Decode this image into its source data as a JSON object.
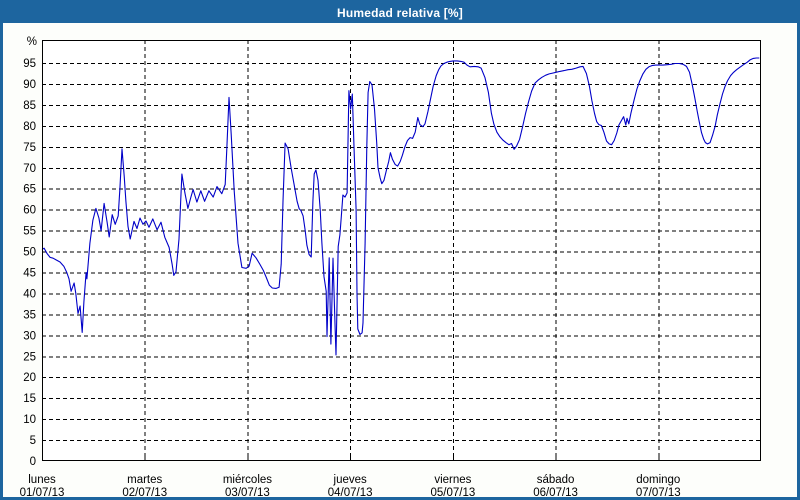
{
  "window": {
    "title": "Humedad relativa [%]"
  },
  "colors": {
    "titlebar": "#1d659f",
    "frame": "#1d659f",
    "figure_bg": "#fdfefb",
    "plot_bg": "#ffffff",
    "grid": "#000000",
    "axis": "#000000",
    "series": "#0000c8",
    "text": "#000000"
  },
  "chart_data": {
    "type": "line",
    "title": "Humedad relativa [%]",
    "ylabel": "%",
    "xlabel": "",
    "grid": true,
    "legend": "none",
    "ylim": [
      0,
      100.5
    ],
    "xlim": [
      0,
      168
    ],
    "x_unit": "hours since lunes 01/07/13 00:00",
    "yticks": [
      0,
      5,
      10,
      15,
      20,
      25,
      30,
      35,
      40,
      45,
      50,
      55,
      60,
      65,
      70,
      75,
      80,
      85,
      90,
      95
    ],
    "xticks": [
      {
        "label": "lunes",
        "date": "01/07/13",
        "hour": 0
      },
      {
        "label": "martes",
        "date": "02/07/13",
        "hour": 24
      },
      {
        "label": "miércoles",
        "date": "03/07/13",
        "hour": 48
      },
      {
        "label": "jueves",
        "date": "04/07/13",
        "hour": 72
      },
      {
        "label": "viernes",
        "date": "05/07/13",
        "hour": 96
      },
      {
        "label": "sábado",
        "date": "06/07/13",
        "hour": 120
      },
      {
        "label": "domingo",
        "date": "07/07/13",
        "hour": 144
      }
    ],
    "series": [
      {
        "name": "Humedad relativa",
        "color": "#0000c8",
        "points": [
          [
            0,
            50.5
          ],
          [
            0.5,
            50.8
          ],
          [
            1.2,
            49.5
          ],
          [
            1.9,
            48.6
          ],
          [
            2.6,
            48.4
          ],
          [
            3.3,
            48
          ],
          [
            4.2,
            47.5
          ],
          [
            5.1,
            46.5
          ],
          [
            5.8,
            45
          ],
          [
            6.3,
            43.5
          ],
          [
            6.8,
            40.5
          ],
          [
            7.5,
            42.5
          ],
          [
            7.9,
            40
          ],
          [
            8.4,
            35.2
          ],
          [
            8.9,
            37
          ],
          [
            9.4,
            30.7
          ],
          [
            9.8,
            38
          ],
          [
            10.3,
            45
          ],
          [
            10.5,
            43.5
          ],
          [
            11.2,
            52
          ],
          [
            11.9,
            57.5
          ],
          [
            12.6,
            60.3
          ],
          [
            13.3,
            58
          ],
          [
            13.8,
            55
          ],
          [
            14.5,
            61.5
          ],
          [
            15.2,
            57
          ],
          [
            15.7,
            53.5
          ],
          [
            16.4,
            58.8
          ],
          [
            17.1,
            56.5
          ],
          [
            17.8,
            58.5
          ],
          [
            18.2,
            65
          ],
          [
            18.7,
            74.5
          ],
          [
            19.2,
            68
          ],
          [
            19.6,
            62
          ],
          [
            20.1,
            56
          ],
          [
            20.6,
            53
          ],
          [
            21.5,
            57.2
          ],
          [
            22.2,
            55.5
          ],
          [
            22.9,
            58
          ],
          [
            23.6,
            56.5
          ],
          [
            24.3,
            57.3
          ],
          [
            25,
            55.8
          ],
          [
            25.9,
            57.8
          ],
          [
            26.9,
            55.2
          ],
          [
            27.8,
            57
          ],
          [
            28.7,
            53.4
          ],
          [
            29.7,
            51
          ],
          [
            30.4,
            47
          ],
          [
            30.8,
            44.3
          ],
          [
            31.3,
            45.2
          ],
          [
            32,
            53
          ],
          [
            32.7,
            68.5
          ],
          [
            33.4,
            64
          ],
          [
            34.1,
            60.3
          ],
          [
            34.8,
            63
          ],
          [
            35.3,
            64.8
          ],
          [
            36.2,
            61.8
          ],
          [
            37.1,
            64.5
          ],
          [
            38,
            62
          ],
          [
            39,
            64.5
          ],
          [
            40,
            63
          ],
          [
            40.9,
            65.5
          ],
          [
            42,
            63.8
          ],
          [
            42.8,
            66
          ],
          [
            43.2,
            75
          ],
          [
            43.7,
            86.8
          ],
          [
            44.2,
            78
          ],
          [
            44.9,
            64.5
          ],
          [
            45.8,
            52
          ],
          [
            46.7,
            46.2
          ],
          [
            47.7,
            46
          ],
          [
            48.4,
            46.5
          ],
          [
            49.1,
            49.6
          ],
          [
            50,
            48.5
          ],
          [
            50.9,
            47
          ],
          [
            51.7,
            45.5
          ],
          [
            52.4,
            43.8
          ],
          [
            53.1,
            42
          ],
          [
            53.8,
            41.3
          ],
          [
            54.7,
            41.2
          ],
          [
            55.4,
            41.5
          ],
          [
            55.9,
            47
          ],
          [
            56.3,
            62
          ],
          [
            56.8,
            75.9
          ],
          [
            57.5,
            74.5
          ],
          [
            58.2,
            70
          ],
          [
            58.9,
            66
          ],
          [
            59.6,
            62
          ],
          [
            60.1,
            60.2
          ],
          [
            60.5,
            59.8
          ],
          [
            61,
            58.5
          ],
          [
            61.5,
            55
          ],
          [
            61.9,
            51.5
          ],
          [
            62.4,
            49.3
          ],
          [
            62.9,
            48.7
          ],
          [
            63.3,
            62
          ],
          [
            63.6,
            68.5
          ],
          [
            64,
            69.5
          ],
          [
            64.5,
            67
          ],
          [
            65,
            60
          ],
          [
            65.4,
            52
          ],
          [
            65.9,
            44
          ],
          [
            66.4,
            40.5
          ],
          [
            66.6,
            29.7
          ],
          [
            67.1,
            48.5
          ],
          [
            67.5,
            27.9
          ],
          [
            68,
            48.4
          ],
          [
            68.5,
            31.2
          ],
          [
            68.7,
            25.3
          ],
          [
            69.2,
            51.2
          ],
          [
            69.6,
            54
          ],
          [
            69.9,
            58
          ],
          [
            70.3,
            63.5
          ],
          [
            70.8,
            63
          ],
          [
            71.3,
            64
          ],
          [
            71.7,
            88.4
          ],
          [
            72.1,
            84
          ],
          [
            72.5,
            87.6
          ],
          [
            72.9,
            75
          ],
          [
            73.4,
            60
          ],
          [
            73.6,
            40
          ],
          [
            73.8,
            31.5
          ],
          [
            74.3,
            30.2
          ],
          [
            74.8,
            30.6
          ],
          [
            75,
            33
          ],
          [
            75.5,
            52
          ],
          [
            75.9,
            75
          ],
          [
            76.2,
            88
          ],
          [
            76.6,
            90.6
          ],
          [
            77.1,
            89.8
          ],
          [
            77.7,
            84
          ],
          [
            78.2,
            76
          ],
          [
            78.5,
            70
          ],
          [
            79,
            67.6
          ],
          [
            79.4,
            66.2
          ],
          [
            79.9,
            67
          ],
          [
            80.5,
            69.5
          ],
          [
            81,
            71.5
          ],
          [
            81.4,
            73.6
          ],
          [
            81.9,
            72
          ],
          [
            82.5,
            70.8
          ],
          [
            83.1,
            70.4
          ],
          [
            83.7,
            71.5
          ],
          [
            84.2,
            73
          ],
          [
            84.8,
            75
          ],
          [
            85.4,
            76.5
          ],
          [
            86,
            77.2
          ],
          [
            86.6,
            77
          ],
          [
            87.2,
            78.5
          ],
          [
            87.8,
            82
          ],
          [
            88.3,
            80.3
          ],
          [
            89,
            79.8
          ],
          [
            89.5,
            80.5
          ],
          [
            90.2,
            83.5
          ],
          [
            90.8,
            86.5
          ],
          [
            91.4,
            89.5
          ],
          [
            92.1,
            92
          ],
          [
            92.7,
            93.4
          ],
          [
            93.2,
            94.3
          ],
          [
            93.9,
            94.9
          ],
          [
            94.6,
            95.2
          ],
          [
            95.3,
            95.4
          ],
          [
            96.1,
            95.5
          ],
          [
            97,
            95.5
          ],
          [
            97.9,
            95.4
          ],
          [
            98.6,
            95.2
          ],
          [
            99.3,
            94.5
          ],
          [
            100,
            94.1
          ],
          [
            101,
            94.2
          ],
          [
            101.9,
            94.1
          ],
          [
            102.6,
            93.8
          ],
          [
            103.5,
            91.5
          ],
          [
            104.3,
            88
          ],
          [
            105,
            83
          ],
          [
            105.6,
            80.4
          ],
          [
            106.3,
            78.5
          ],
          [
            107,
            77.4
          ],
          [
            107.7,
            76.6
          ],
          [
            108.4,
            76
          ],
          [
            109.1,
            75.5
          ],
          [
            109.7,
            75.8
          ],
          [
            110.3,
            74.4
          ],
          [
            110.9,
            75.2
          ],
          [
            111.6,
            76.8
          ],
          [
            112.3,
            79.8
          ],
          [
            113,
            83
          ],
          [
            113.7,
            85.8
          ],
          [
            114.4,
            88.3
          ],
          [
            115.2,
            90.2
          ],
          [
            116,
            91
          ],
          [
            116.8,
            91.6
          ],
          [
            117.7,
            92.1
          ],
          [
            118.5,
            92.4
          ],
          [
            119.3,
            92.6
          ],
          [
            120.1,
            92.8
          ],
          [
            121,
            93
          ],
          [
            122,
            93.2
          ],
          [
            122.9,
            93.4
          ],
          [
            123.8,
            93.5
          ],
          [
            124.8,
            93.8
          ],
          [
            125.7,
            94.1
          ],
          [
            126.4,
            94.2
          ],
          [
            127.2,
            92.5
          ],
          [
            127.9,
            89.5
          ],
          [
            128.5,
            86
          ],
          [
            129.1,
            83
          ],
          [
            129.6,
            81
          ],
          [
            130.1,
            80.3
          ],
          [
            130.7,
            80.1
          ],
          [
            131.3,
            78.5
          ],
          [
            131.9,
            76.4
          ],
          [
            132.5,
            75.7
          ],
          [
            133.1,
            75.5
          ],
          [
            133.7,
            76.5
          ],
          [
            134.3,
            78.3
          ],
          [
            134.8,
            80.2
          ],
          [
            135.4,
            81.3
          ],
          [
            135.9,
            82.2
          ],
          [
            136.4,
            80.2
          ],
          [
            136.7,
            81.8
          ],
          [
            137.1,
            80.5
          ],
          [
            137.6,
            83
          ],
          [
            138.3,
            86
          ],
          [
            139,
            88.8
          ],
          [
            139.7,
            90.8
          ],
          [
            140.4,
            92.4
          ],
          [
            141.1,
            93.5
          ],
          [
            141.8,
            94.1
          ],
          [
            142.5,
            94.4
          ],
          [
            143.4,
            94.5
          ],
          [
            144.2,
            94.5
          ],
          [
            145.1,
            94.5
          ],
          [
            146.1,
            94.6
          ],
          [
            147,
            94.7
          ],
          [
            147.9,
            94.9
          ],
          [
            148.9,
            94.9
          ],
          [
            149.8,
            94.7
          ],
          [
            150.6,
            94.2
          ],
          [
            151.3,
            92.8
          ],
          [
            151.9,
            90
          ],
          [
            152.5,
            86.8
          ],
          [
            153.1,
            83.5
          ],
          [
            153.6,
            80.8
          ],
          [
            154.1,
            78.4
          ],
          [
            154.6,
            76.8
          ],
          [
            155,
            76
          ],
          [
            155.5,
            75.7
          ],
          [
            156.1,
            76
          ],
          [
            156.7,
            77.8
          ],
          [
            157.3,
            80
          ],
          [
            157.8,
            82.6
          ],
          [
            158.4,
            85.2
          ],
          [
            159,
            87.6
          ],
          [
            159.6,
            89.4
          ],
          [
            160.2,
            90.8
          ],
          [
            160.9,
            92
          ],
          [
            161.6,
            92.8
          ],
          [
            162.3,
            93.4
          ],
          [
            163.1,
            94
          ],
          [
            163.9,
            94.6
          ],
          [
            164.8,
            95.2
          ],
          [
            165.5,
            95.8
          ],
          [
            166.2,
            96.1
          ],
          [
            166.9,
            96.2
          ],
          [
            167.6,
            96.2
          ]
        ]
      }
    ]
  }
}
